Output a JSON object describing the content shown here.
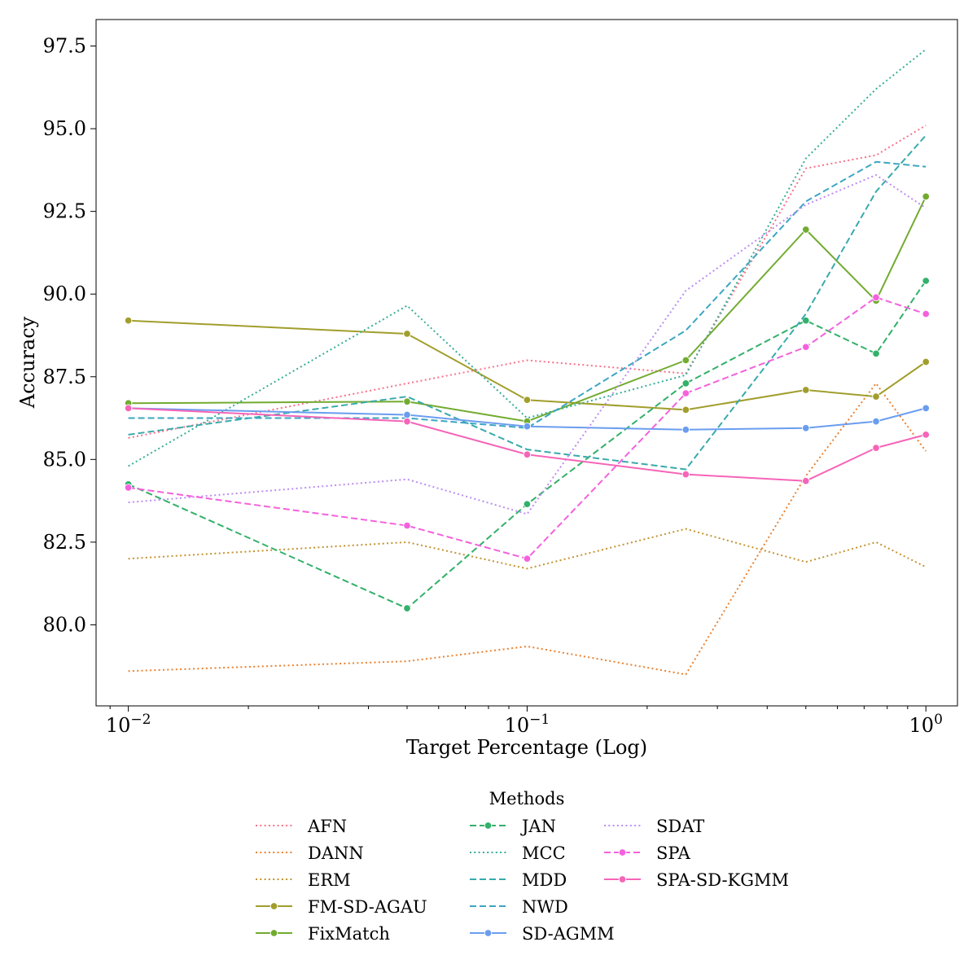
{
  "chart_data": {
    "type": "line",
    "title": "",
    "xlabel": "Target Percentage (Log)",
    "ylabel": "Accuracy",
    "xscale": "log",
    "xlim": [
      0.0083,
      1.2
    ],
    "ylim": [
      77.55,
      98.3
    ],
    "x": [
      0.01,
      0.05,
      0.1,
      0.25,
      0.5,
      0.75,
      1.0
    ],
    "x_ticks": [
      {
        "value": 0.01,
        "base": "10",
        "exp": "−2"
      },
      {
        "value": 0.1,
        "base": "10",
        "exp": "−1"
      },
      {
        "value": 1.0,
        "base": "10",
        "exp": "0"
      }
    ],
    "y_ticks": [
      {
        "value": 80.0,
        "label": "80.0"
      },
      {
        "value": 82.5,
        "label": "82.5"
      },
      {
        "value": 85.0,
        "label": "85.0"
      },
      {
        "value": 87.5,
        "label": "87.5"
      },
      {
        "value": 90.0,
        "label": "90.0"
      },
      {
        "value": 92.5,
        "label": "92.5"
      },
      {
        "value": 95.0,
        "label": "95.0"
      },
      {
        "value": 97.5,
        "label": "97.5"
      }
    ],
    "legend": {
      "title": "Methods",
      "placement": "bottom-center",
      "columns": 3
    },
    "series": [
      {
        "name": "AFN",
        "color": "#f77189",
        "dash": "dotted",
        "marker": false,
        "values": [
          85.65,
          87.3,
          88.0,
          87.6,
          93.8,
          94.2,
          95.1
        ]
      },
      {
        "name": "DANN",
        "color": "#e9812f",
        "dash": "dotted",
        "marker": false,
        "values": [
          78.6,
          78.9,
          79.35,
          78.5,
          84.5,
          87.3,
          85.25
        ]
      },
      {
        "name": "ERM",
        "color": "#c39330",
        "dash": "dotted",
        "marker": false,
        "values": [
          82.0,
          82.5,
          81.7,
          82.9,
          81.9,
          82.5,
          81.75
        ]
      },
      {
        "name": "FM-SD-AGAU",
        "color": "#a19e2c",
        "dash": "solid",
        "marker": true,
        "values": [
          89.2,
          88.8,
          86.8,
          86.5,
          87.1,
          86.9,
          87.95
        ]
      },
      {
        "name": "FixMatch",
        "color": "#72ab30",
        "dash": "solid",
        "marker": true,
        "values": [
          86.7,
          86.75,
          86.15,
          88.0,
          91.95,
          89.8,
          92.95
        ]
      },
      {
        "name": "JAN",
        "color": "#33b06a",
        "dash": "dashed",
        "marker": true,
        "values": [
          84.25,
          80.5,
          83.65,
          87.3,
          89.2,
          88.2,
          90.4
        ]
      },
      {
        "name": "MCC",
        "color": "#36ad98",
        "dash": "dotted",
        "marker": false,
        "values": [
          84.8,
          89.65,
          86.25,
          87.55,
          94.1,
          96.2,
          97.4
        ]
      },
      {
        "name": "MDD",
        "color": "#38aaac",
        "dash": "dashed",
        "marker": false,
        "values": [
          85.75,
          86.9,
          85.3,
          84.7,
          89.4,
          93.1,
          94.8
        ]
      },
      {
        "name": "NWD",
        "color": "#3ca6c2",
        "dash": "dashed",
        "marker": false,
        "values": [
          86.25,
          86.25,
          85.95,
          88.9,
          92.8,
          94.0,
          93.85
        ]
      },
      {
        "name": "SD-AGMM",
        "color": "#6a9def",
        "dash": "solid",
        "marker": true,
        "values": [
          86.55,
          86.35,
          86.0,
          85.9,
          85.95,
          86.15,
          86.55
        ]
      },
      {
        "name": "SDAT",
        "color": "#bc8cf2",
        "dash": "dotted",
        "marker": false,
        "values": [
          83.7,
          84.4,
          83.35,
          90.1,
          92.7,
          93.6,
          92.6
        ]
      },
      {
        "name": "SPA",
        "color": "#f461dd",
        "dash": "dashed",
        "marker": true,
        "values": [
          84.15,
          83.0,
          82.0,
          87.0,
          88.4,
          89.9,
          89.4
        ]
      },
      {
        "name": "SPA-SD-KGMM",
        "color": "#f565b8",
        "dash": "solid",
        "marker": true,
        "values": [
          86.55,
          86.15,
          85.15,
          84.55,
          84.35,
          85.35,
          85.75
        ]
      }
    ]
  }
}
